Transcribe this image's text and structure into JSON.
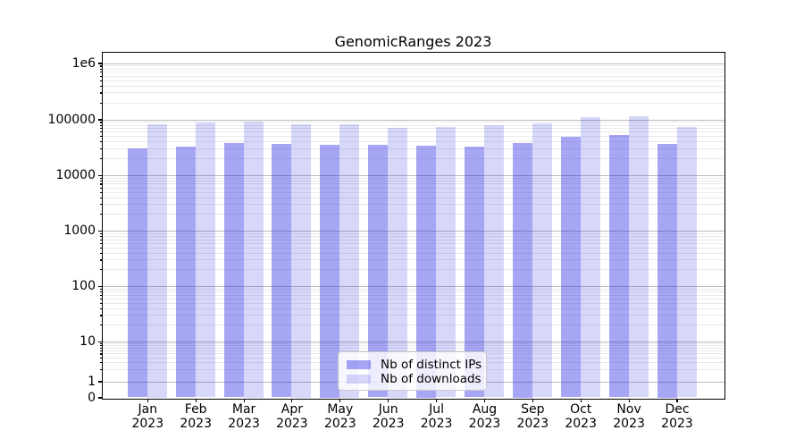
{
  "title": "GenomicRanges 2023",
  "legend": {
    "items": [
      {
        "label": "Nb of distinct IPs",
        "color": "rgba(20,20,225,0.38)"
      },
      {
        "label": "Nb of downloads",
        "color": "rgba(20,20,225,0.17)"
      }
    ]
  },
  "axis": {
    "y_ticks": [
      {
        "label": "1e6",
        "value": 1000000
      },
      {
        "label": "100000",
        "value": 100000
      },
      {
        "label": "10000",
        "value": 10000
      },
      {
        "label": "1000",
        "value": 1000
      },
      {
        "label": "100",
        "value": 100
      },
      {
        "label": "10",
        "value": 10
      },
      {
        "label": "1",
        "value": 1
      },
      {
        "label": "0",
        "value": 0
      }
    ],
    "x_ticks": [
      {
        "line1": "Jan",
        "line2": "2023"
      },
      {
        "line1": "Feb",
        "line2": "2023"
      },
      {
        "line1": "Mar",
        "line2": "2023"
      },
      {
        "line1": "Apr",
        "line2": "2023"
      },
      {
        "line1": "May",
        "line2": "2023"
      },
      {
        "line1": "Jun",
        "line2": "2023"
      },
      {
        "line1": "Jul",
        "line2": "2023"
      },
      {
        "line1": "Aug",
        "line2": "2023"
      },
      {
        "line1": "Sep",
        "line2": "2023"
      },
      {
        "line1": "Oct",
        "line2": "2023"
      },
      {
        "line1": "Nov",
        "line2": "2023"
      },
      {
        "line1": "Dec",
        "line2": "2023"
      }
    ]
  },
  "chart_data": {
    "type": "bar",
    "title": "GenomicRanges 2023",
    "categories": [
      "Jan 2023",
      "Feb 2023",
      "Mar 2023",
      "Apr 2023",
      "May 2023",
      "Jun 2023",
      "Jul 2023",
      "Aug 2023",
      "Sep 2023",
      "Oct 2023",
      "Nov 2023",
      "Dec 2023"
    ],
    "series": [
      {
        "name": "Nb of distinct IPs",
        "color": "rgba(20,20,225,0.38)",
        "values": [
          29900,
          32600,
          37800,
          35900,
          35500,
          35100,
          34200,
          32600,
          38300,
          49000,
          52000,
          36900
        ]
      },
      {
        "name": "Nb of downloads",
        "color": "rgba(20,20,225,0.17)",
        "values": [
          83000,
          88500,
          93000,
          83200,
          83000,
          71700,
          72200,
          78100,
          85000,
          108000,
          114000,
          72900
        ]
      }
    ],
    "xlabel": "",
    "ylabel": "",
    "yscale": "symlog",
    "ylim": [
      0,
      1560000
    ],
    "y_major_ticks": [
      1000000,
      100000,
      10000,
      1000,
      100,
      10,
      1,
      0
    ],
    "grid": true,
    "legend_position": "lower center"
  }
}
